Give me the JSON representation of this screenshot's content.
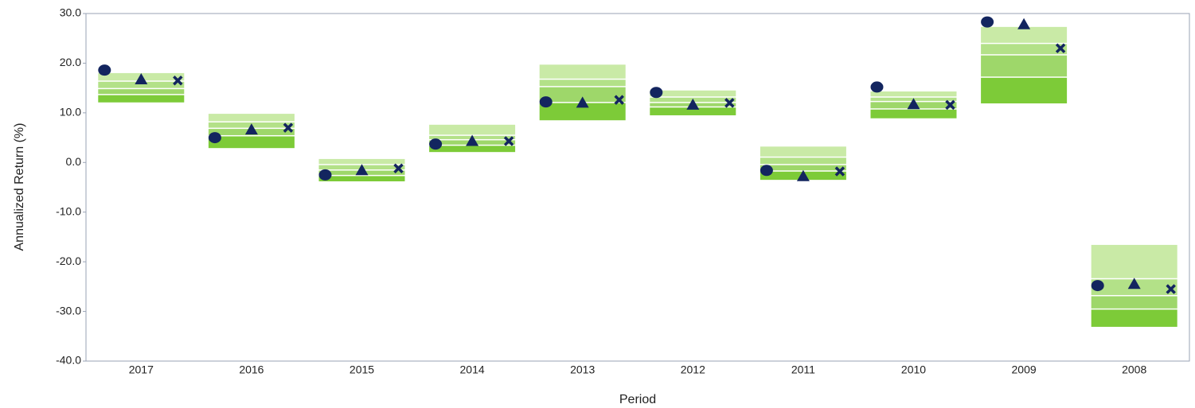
{
  "chart_data": {
    "type": "floating-range",
    "x_label": "Period",
    "y_label": "Annualized Return (%)",
    "categories": [
      "2017",
      "2016",
      "2015",
      "2014",
      "2013",
      "2012",
      "2011",
      "2010",
      "2009",
      "2008"
    ],
    "ranges": [
      [
        18.0,
        16.5,
        15.0,
        13.8,
        12.1
      ],
      [
        9.8,
        8.3,
        7.0,
        5.5,
        2.9
      ],
      [
        0.7,
        -0.3,
        -1.4,
        -2.5,
        -3.8
      ],
      [
        7.6,
        5.6,
        4.7,
        3.6,
        2.1
      ],
      [
        19.7,
        16.9,
        15.4,
        12.2,
        8.5
      ],
      [
        14.5,
        13.3,
        12.2,
        11.3,
        9.5
      ],
      [
        3.2,
        1.2,
        -0.3,
        -1.6,
        -3.5
      ],
      [
        14.3,
        13.3,
        12.4,
        10.9,
        8.9
      ],
      [
        27.3,
        24.1,
        21.8,
        17.3,
        11.9
      ],
      [
        -16.6,
        -23.3,
        -26.7,
        -29.4,
        -33.1
      ]
    ],
    "band_colors": [
      "#c9eaa6",
      "#b3e188",
      "#9ed76a",
      "#7dcb38"
    ],
    "series": [
      {
        "marker": "circle",
        "color": "#13255f",
        "values": [
          18.6,
          5.0,
          -2.5,
          3.7,
          12.2,
          14.1,
          -1.6,
          15.2,
          28.3,
          -24.8
        ]
      },
      {
        "marker": "triangle",
        "color": "#13255f",
        "values": [
          16.7,
          6.6,
          -1.6,
          4.3,
          12.0,
          11.6,
          -2.8,
          11.7,
          27.8,
          -24.5
        ]
      },
      {
        "marker": "cross",
        "color": "#13255f",
        "values": [
          16.5,
          7.0,
          -1.2,
          4.3,
          12.6,
          12.0,
          -1.8,
          11.6,
          23.0,
          -25.5
        ]
      }
    ],
    "ylim": [
      -40,
      30
    ],
    "yticks": [
      {
        "value": -40,
        "label": "-40.0"
      },
      {
        "value": -30,
        "label": "-30.0"
      },
      {
        "value": -20,
        "label": "-20.0"
      },
      {
        "value": -10,
        "label": "-10.0"
      },
      {
        "value": 0,
        "label": "0.0"
      },
      {
        "value": 10,
        "label": "10.0"
      },
      {
        "value": 20,
        "label": "20.0"
      },
      {
        "value": 30,
        "label": "30.0"
      }
    ],
    "grid": false
  }
}
